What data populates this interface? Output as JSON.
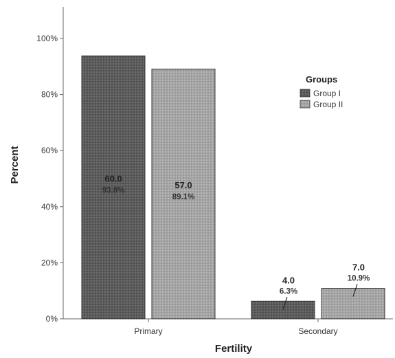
{
  "chart_data": {
    "type": "bar",
    "categories": [
      "Primary",
      "Secondary"
    ],
    "series": [
      {
        "name": "Group I",
        "values": [
          93.8,
          6.3
        ],
        "counts": [
          "60.0",
          "4.0"
        ],
        "percent_labels": [
          "93.8%",
          "6.3%"
        ],
        "color": "#5f5f5f"
      },
      {
        "name": "Group II",
        "values": [
          89.1,
          10.9
        ],
        "counts": [
          "57.0",
          "7.0"
        ],
        "percent_labels": [
          "89.1%",
          "10.9%"
        ],
        "color": "#a9a9a9"
      }
    ],
    "xlabel": "Fertility",
    "ylabel": "Percent",
    "ylim": [
      0,
      110
    ],
    "yticks": [
      0,
      20,
      40,
      60,
      80,
      100
    ],
    "ytick_labels": [
      "0%",
      "20%",
      "40%",
      "60%",
      "80%",
      "100%"
    ],
    "legend_title": "Groups",
    "legend_position": "right",
    "grid": false
  }
}
